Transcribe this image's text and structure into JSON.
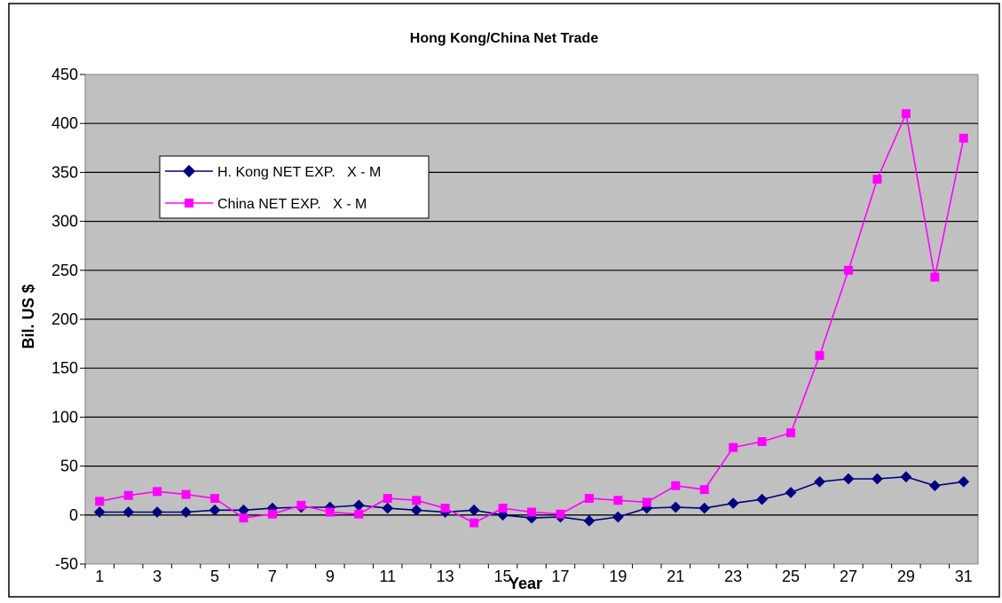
{
  "chart_data": {
    "type": "line",
    "title": "Hong Kong/China Net Trade",
    "xlabel": "Year",
    "ylabel": "Bil. US $",
    "ylim": [
      -50,
      450
    ],
    "yticks": [
      -50,
      0,
      50,
      100,
      150,
      200,
      250,
      300,
      350,
      400,
      450
    ],
    "x": [
      1,
      2,
      3,
      4,
      5,
      6,
      7,
      8,
      9,
      10,
      11,
      12,
      13,
      14,
      15,
      16,
      17,
      18,
      19,
      20,
      21,
      22,
      23,
      24,
      25,
      26,
      27,
      28,
      29,
      30,
      31
    ],
    "xtick_labels": [
      "1",
      "3",
      "5",
      "7",
      "9",
      "11",
      "13",
      "15",
      "17",
      "19",
      "21",
      "23",
      "25",
      "27",
      "29",
      "31"
    ],
    "grid": "horizontal",
    "legend_position": "upper-left",
    "colors": {
      "plot_background": "#c0c0c0"
    },
    "series": [
      {
        "name": "H. Kong NET EXP.   X - M",
        "color": "#000080",
        "marker": "diamond",
        "values": [
          3,
          3,
          3,
          3,
          5,
          5,
          7,
          8,
          8,
          10,
          7,
          5,
          3,
          5,
          0,
          -3,
          -2,
          -6,
          -2,
          7,
          8,
          7,
          12,
          16,
          23,
          34,
          37,
          37,
          39,
          30,
          34
        ]
      },
      {
        "name": "China NET EXP.   X - M",
        "color": "#ff00ff",
        "marker": "square",
        "values": [
          14,
          20,
          24,
          21,
          17,
          -3,
          1,
          10,
          3,
          1,
          17,
          15,
          7,
          -8,
          7,
          3,
          1,
          17,
          15,
          13,
          30,
          26,
          69,
          75,
          84,
          163,
          250,
          343,
          410,
          243,
          385
        ]
      }
    ]
  }
}
